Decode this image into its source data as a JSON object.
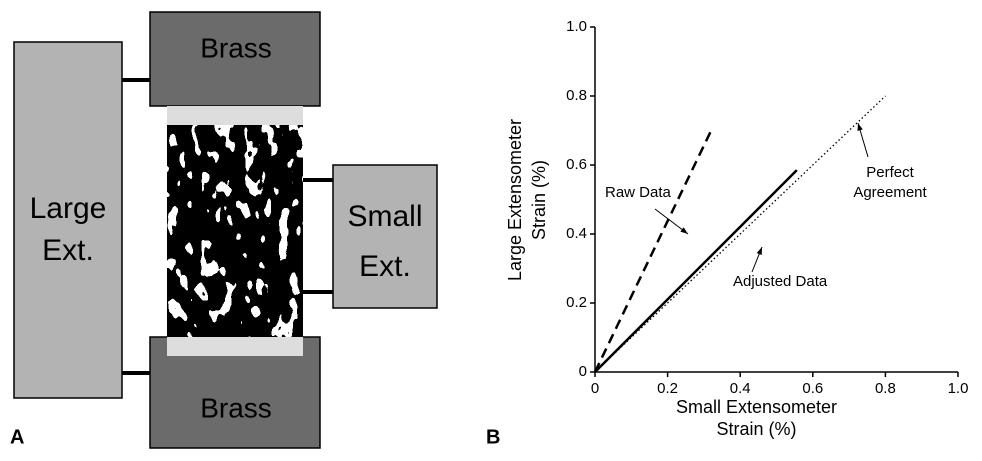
{
  "diagram": {
    "top_block": "Brass",
    "bottom_block": "Brass",
    "large_extensometer": [
      "Large",
      "Ext."
    ],
    "small_extensometer": [
      "Small",
      "Ext."
    ],
    "panel_a": "A",
    "panel_b": "B"
  },
  "chart_data": {
    "type": "line",
    "xlabel": [
      "Small Extensometer",
      "Strain (%)"
    ],
    "ylabel": [
      "Large Extensometer",
      "Strain (%)"
    ],
    "xlim": [
      0,
      1
    ],
    "ylim": [
      0,
      1
    ],
    "xticks": [
      0,
      0.2,
      0.4,
      0.6,
      0.8,
      {
        "value": 1,
        "label": "1.0"
      }
    ],
    "yticks": [
      0,
      0.2,
      0.4,
      0.6,
      0.8,
      {
        "value": 1,
        "label": "1.0"
      }
    ],
    "series": [
      {
        "x": [
          0,
          0.32
        ],
        "values": [
          0,
          0.7
        ],
        "color": "#000000",
        "style": "dashed"
      },
      {
        "x": [
          0,
          0.556
        ],
        "values": [
          0,
          0.585
        ],
        "color": "#000000",
        "style": "solid"
      },
      {
        "x": [
          0,
          0.8
        ],
        "values": [
          0,
          0.8
        ],
        "color": "#000000",
        "style": "dotted"
      }
    ],
    "annotations": [
      [
        "Raw Data"
      ],
      [
        "Adjusted Data"
      ],
      [
        "Perfect",
        "Agreement"
      ]
    ]
  }
}
